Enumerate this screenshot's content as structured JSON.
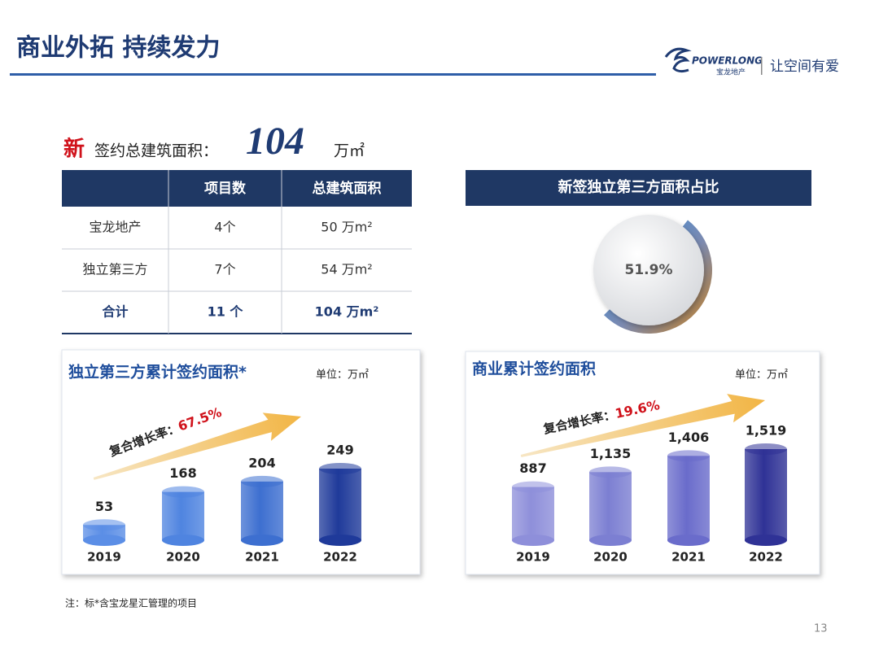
{
  "header": {
    "title": "商业外拓 持续发力",
    "logo_en": "POWERLONG",
    "logo_cn": "宝龙地产",
    "slogan": "让空间有爱"
  },
  "headline": {
    "mark": "新",
    "label": "签约总建筑面积：",
    "value": "104",
    "unit": "万㎡"
  },
  "table": {
    "headers": [
      "项目数",
      "总建筑面积"
    ],
    "rows": [
      [
        "宝龙地产",
        "4个",
        "50 万m²"
      ],
      [
        "独立第三方",
        "7个",
        "54 万m²"
      ],
      [
        "合计",
        "11 个",
        "104 万m²"
      ]
    ]
  },
  "chart_data": [
    {
      "type": "donut",
      "title": "新签独立第三方面积占比",
      "values": [
        51.9
      ],
      "value_labels": [
        "51.9%"
      ]
    },
    {
      "type": "cylinder",
      "title": "独立第三方累计签约面积*",
      "unit": "单位：万㎡",
      "annotation": {
        "label": "复合增长率：",
        "value": "67.5%"
      },
      "categories": [
        "2019",
        "2020",
        "2021",
        "2022"
      ],
      "values": [
        53,
        168,
        204,
        249
      ],
      "colors": [
        "#5b8ee6",
        "#4f84e0",
        "#3d6fd0",
        "#1f3a9a"
      ]
    },
    {
      "type": "cylinder",
      "title": "商业累计签约面积",
      "unit": "单位：万㎡",
      "annotation": {
        "label": "复合增长率：",
        "value": "19.6%"
      },
      "categories": [
        "2019",
        "2020",
        "2021",
        "2022"
      ],
      "values": [
        887,
        1135,
        1406,
        1519
      ],
      "value_labels": [
        "887",
        "1,135",
        "1,406",
        "1,519"
      ],
      "colors": [
        "#8e8fda",
        "#7c7fd2",
        "#6a6ccb",
        "#2f3296"
      ]
    }
  ],
  "footnote": "注：标*含宝龙星汇管理的项目",
  "page_number": "13"
}
